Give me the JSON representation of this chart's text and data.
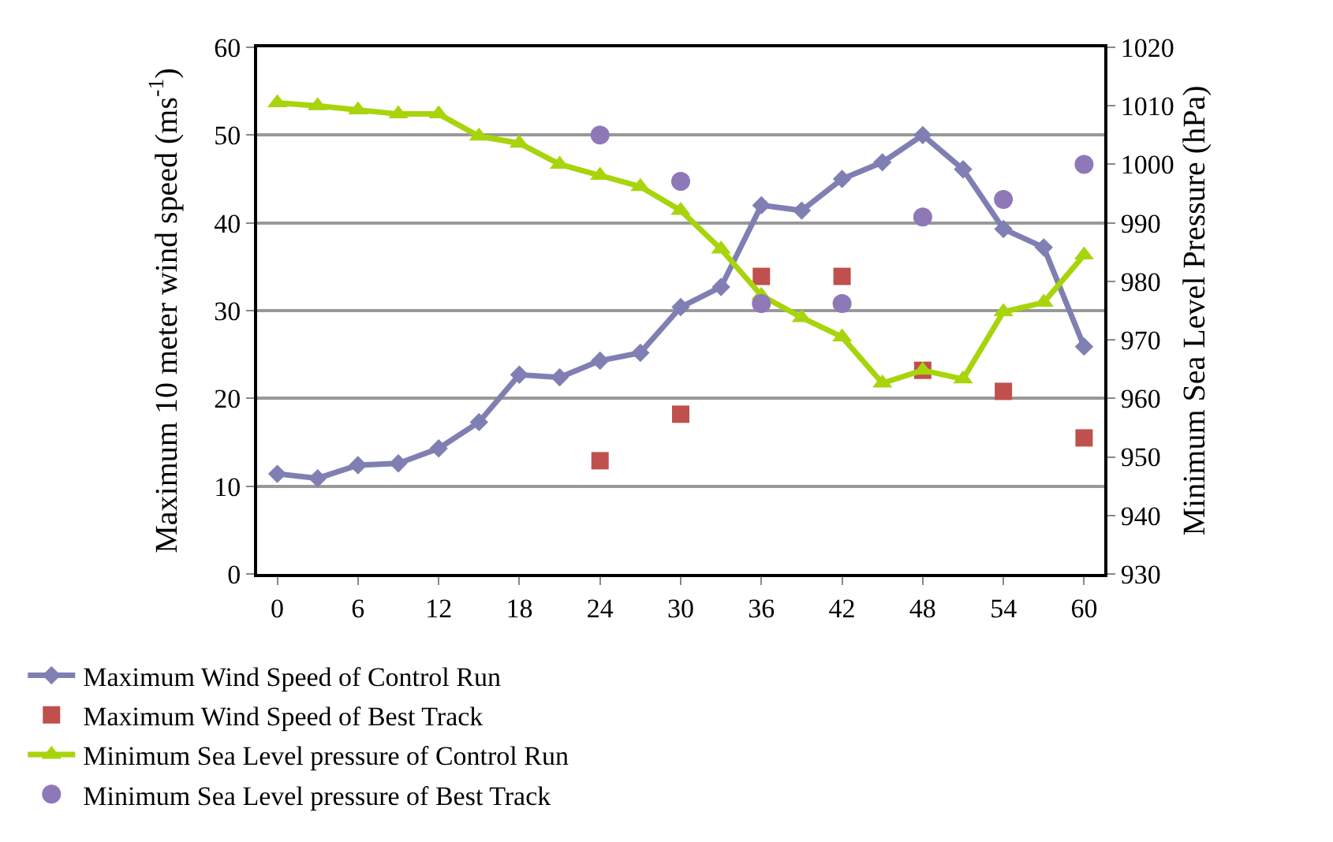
{
  "chart_data": {
    "type": "line",
    "ylabel": "Maximum 10 meter wind speed (ms$^{-1}$)",
    "y2label": "Minimum Sea Level Pressure (hPa)",
    "x": [
      0,
      3,
      6,
      9,
      12,
      15,
      18,
      21,
      24,
      27,
      30,
      33,
      36,
      39,
      42,
      45,
      48,
      51,
      54,
      57,
      60
    ],
    "xlim": [
      -1.5,
      61.5
    ],
    "xticks": [
      0,
      6,
      12,
      18,
      24,
      30,
      36,
      42,
      48,
      54,
      60
    ],
    "ylim": [
      0,
      60
    ],
    "yticks": [
      0,
      10,
      20,
      30,
      40,
      50,
      60
    ],
    "y2lim": [
      930,
      1020
    ],
    "y2ticks": [
      930,
      940,
      950,
      960,
      970,
      980,
      990,
      1000,
      1010,
      1020
    ],
    "grid": "y",
    "legend": "bottom",
    "series": [
      {
        "name": "Maximum Wind Speed of Control Run",
        "marker": "diamond",
        "color": "#7f7fb3",
        "values": [
          11.4,
          10.9,
          12.4,
          12.6,
          14.3,
          17.3,
          22.7,
          22.4,
          24.3,
          25.2,
          30.4,
          32.7,
          42,
          41.4,
          45,
          46.9,
          50,
          46.1,
          39.3,
          37.2,
          25.9
        ]
      },
      {
        "name": "Maximum Wind Speed of Best Track",
        "type": "scatter",
        "marker": "square",
        "color": "#c0504d",
        "x": [
          24,
          30,
          36,
          42,
          48,
          54,
          60
        ],
        "values": [
          12.9,
          18.2,
          33.9,
          33.9,
          23.2,
          20.8,
          15.5
        ]
      },
      {
        "name": "Minimum Sea Level pressure of Control Run",
        "marker": "triangle",
        "color": "#a8d40c",
        "axis": "y2",
        "values": [
          1010.5,
          1010,
          1009.3,
          1008.6,
          1008.6,
          1004.8,
          1003.6,
          1000,
          998.1,
          996.2,
          992.1,
          985.5,
          977.6,
          973.8,
          970.5,
          962.6,
          964.8,
          963.3,
          974.8,
          976.4,
          984.5
        ]
      },
      {
        "name": "Minimum Sea Level pressure of Best Track",
        "type": "scatter",
        "marker": "circle",
        "color": "#8f78b8",
        "axis": "y2",
        "x": [
          24,
          30,
          36,
          42,
          48,
          54,
          60
        ],
        "values": [
          1005,
          997.1,
          976.2,
          976.2,
          991,
          994,
          1000
        ]
      }
    ]
  }
}
